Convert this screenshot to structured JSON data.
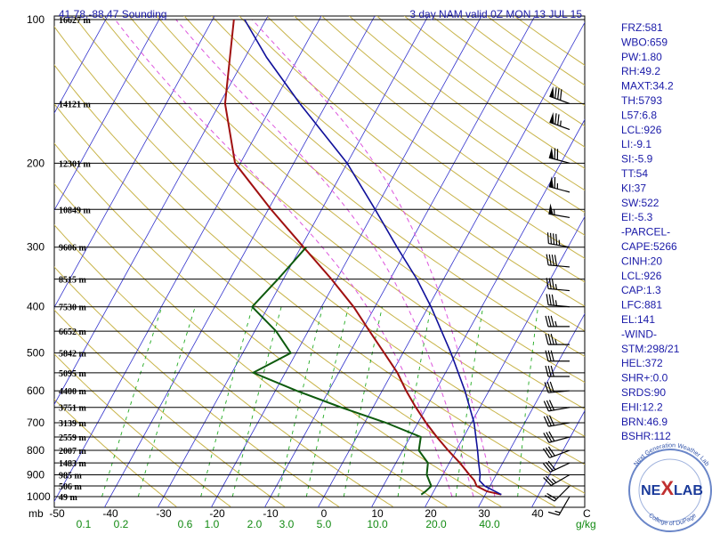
{
  "header": {
    "location": "41.78,-88.47 Sounding",
    "model": "3 day NAM valid 0Z MON 13 JUL 15"
  },
  "chart_data": {
    "type": "skew-t",
    "x_axis": {
      "ticks": [
        -50,
        -40,
        -30,
        -20,
        -10,
        0,
        10,
        20,
        30,
        40
      ],
      "unit": "C",
      "range": [
        -50,
        50
      ]
    },
    "y_axis": {
      "label": "mb",
      "scale": "log",
      "range": [
        1000,
        100
      ],
      "ticks": [
        100,
        200,
        300,
        400,
        500,
        600,
        700,
        800,
        900,
        1000
      ]
    },
    "mixing_ratio_axis": {
      "unit": "g/kg",
      "ticks": [
        {
          "label": "0.1",
          "temp": -45
        },
        {
          "label": "0.2",
          "temp": -38
        },
        {
          "label": "0.6",
          "temp": -26
        },
        {
          "label": "1.0",
          "temp": -21
        },
        {
          "label": "2.0",
          "temp": -13
        },
        {
          "label": "3.0",
          "temp": -7
        },
        {
          "label": "5.0",
          "temp": 0
        },
        {
          "label": "10.0",
          "temp": 10
        },
        {
          "label": "20.0",
          "temp": 21
        },
        {
          "label": "40.0",
          "temp": 31
        }
      ]
    },
    "height_labels": [
      {
        "p": 100,
        "h": "16627 m"
      },
      {
        "p": 150,
        "h": "14121 m"
      },
      {
        "p": 200,
        "h": "12301 m"
      },
      {
        "p": 250,
        "h": "10849 m"
      },
      {
        "p": 300,
        "h": "9606 m"
      },
      {
        "p": 350,
        "h": "8515 m"
      },
      {
        "p": 400,
        "h": "7530 m"
      },
      {
        "p": 450,
        "h": "6652 m"
      },
      {
        "p": 500,
        "h": "5842 m"
      },
      {
        "p": 550,
        "h": "5095 m"
      },
      {
        "p": 600,
        "h": "4400 m"
      },
      {
        "p": 650,
        "h": "3751 m"
      },
      {
        "p": 700,
        "h": "3139 m"
      },
      {
        "p": 750,
        "h": "2559 m"
      },
      {
        "p": 800,
        "h": "2007 m"
      },
      {
        "p": 850,
        "h": "1483 m"
      },
      {
        "p": 900,
        "h": "985 m"
      },
      {
        "p": 950,
        "h": "506 m"
      },
      {
        "p": 1000,
        "h": "49 m"
      }
    ],
    "series": [
      {
        "kind": "temperature",
        "points": [
          {
            "p": 990,
            "t": 33
          },
          {
            "p": 975,
            "t": 30
          },
          {
            "p": 950,
            "t": 27.5
          },
          {
            "p": 925,
            "t": 26.5
          },
          {
            "p": 900,
            "t": 25
          },
          {
            "p": 850,
            "t": 22
          },
          {
            "p": 800,
            "t": 18.5
          },
          {
            "p": 750,
            "t": 15
          },
          {
            "p": 700,
            "t": 11.5
          },
          {
            "p": 650,
            "t": 8
          },
          {
            "p": 600,
            "t": 4.5
          },
          {
            "p": 550,
            "t": 1
          },
          {
            "p": 500,
            "t": -3.5
          },
          {
            "p": 450,
            "t": -8.5
          },
          {
            "p": 400,
            "t": -14
          },
          {
            "p": 350,
            "t": -21
          },
          {
            "p": 300,
            "t": -29.5
          },
          {
            "p": 250,
            "t": -39.5
          },
          {
            "p": 200,
            "t": -51
          },
          {
            "p": 150,
            "t": -59
          },
          {
            "p": 100,
            "t": -66
          }
        ]
      },
      {
        "kind": "dewpoint",
        "points": [
          {
            "p": 990,
            "t": 18
          },
          {
            "p": 975,
            "t": 18.5
          },
          {
            "p": 950,
            "t": 19
          },
          {
            "p": 900,
            "t": 17
          },
          {
            "p": 850,
            "t": 16
          },
          {
            "p": 800,
            "t": 13
          },
          {
            "p": 750,
            "t": 12
          },
          {
            "p": 700,
            "t": 4
          },
          {
            "p": 650,
            "t": -6
          },
          {
            "p": 600,
            "t": -16
          },
          {
            "p": 550,
            "t": -26
          },
          {
            "p": 500,
            "t": -21
          },
          {
            "p": 450,
            "t": -26
          },
          {
            "p": 400,
            "t": -33
          },
          {
            "p": 350,
            "t": -31
          },
          {
            "p": 300,
            "t": -29
          }
        ]
      },
      {
        "kind": "parcel",
        "points": [
          {
            "p": 990,
            "t": 33
          },
          {
            "p": 950,
            "t": 29
          },
          {
            "p": 926,
            "t": 27.5
          },
          {
            "p": 900,
            "t": 27
          },
          {
            "p": 850,
            "t": 25.5
          },
          {
            "p": 800,
            "t": 24
          },
          {
            "p": 700,
            "t": 20.5
          },
          {
            "p": 600,
            "t": 15.5
          },
          {
            "p": 500,
            "t": 9
          },
          {
            "p": 400,
            "t": 0.5
          },
          {
            "p": 350,
            "t": -5
          },
          {
            "p": 300,
            "t": -12
          },
          {
            "p": 250,
            "t": -20
          },
          {
            "p": 200,
            "t": -30
          },
          {
            "p": 150,
            "t": -45
          },
          {
            "p": 120,
            "t": -56
          },
          {
            "p": 100,
            "t": -64
          }
        ]
      }
    ],
    "wind_barbs": [
      {
        "p": 150,
        "dir": 290,
        "spd": 80
      },
      {
        "p": 170,
        "dir": 290,
        "spd": 75
      },
      {
        "p": 200,
        "dir": 285,
        "spd": 70
      },
      {
        "p": 230,
        "dir": 285,
        "spd": 65
      },
      {
        "p": 260,
        "dir": 280,
        "spd": 55
      },
      {
        "p": 300,
        "dir": 280,
        "spd": 45
      },
      {
        "p": 330,
        "dir": 275,
        "spd": 40
      },
      {
        "p": 370,
        "dir": 275,
        "spd": 35
      },
      {
        "p": 400,
        "dir": 275,
        "spd": 35
      },
      {
        "p": 440,
        "dir": 270,
        "spd": 35
      },
      {
        "p": 480,
        "dir": 270,
        "spd": 35
      },
      {
        "p": 520,
        "dir": 270,
        "spd": 30
      },
      {
        "p": 560,
        "dir": 270,
        "spd": 30
      },
      {
        "p": 600,
        "dir": 265,
        "spd": 30
      },
      {
        "p": 650,
        "dir": 260,
        "spd": 30
      },
      {
        "p": 700,
        "dir": 260,
        "spd": 30
      },
      {
        "p": 750,
        "dir": 255,
        "spd": 30
      },
      {
        "p": 800,
        "dir": 250,
        "spd": 30
      },
      {
        "p": 850,
        "dir": 245,
        "spd": 30
      },
      {
        "p": 900,
        "dir": 240,
        "spd": 25
      },
      {
        "p": 950,
        "dir": 225,
        "spd": 20
      },
      {
        "p": 1000,
        "dir": 210,
        "spd": 15
      }
    ]
  },
  "indices": [
    "FRZ:581",
    "WBO:659",
    "PW:1.80",
    "RH:49.2",
    "MAXT:34.2",
    "TH:5793",
    "L57:6.8",
    "LCL:926",
    "LI:-9.1",
    "SI:-5.9",
    "TT:54",
    "KI:37",
    "SW:522",
    "EI:-5.3",
    "-PARCEL-",
    "CAPE:5266",
    "CINH:20",
    "LCL:926",
    "CAP:1.3",
    "LFC:881",
    "EL:141",
    "-WIND-",
    "STM:298/21",
    "HEL:372",
    "SHR+:0.0",
    "SRDS:90",
    "EHI:12.2",
    "BRN:46.9",
    "BSHR:112"
  ],
  "logo": {
    "main_a": "NE",
    "main_b": "X",
    "main_c": "LAB",
    "ring_top": "Next Generation Weather Lab",
    "ring_bottom": "College of DuPage"
  },
  "colors": {
    "temperature": "#a01010",
    "dewpoint": "#0d5a0d",
    "parcel": "#10109a",
    "isotherm": "#3333cc",
    "dry_adiabat": "#c8b44a",
    "moist_adiabat": "#dd55dd",
    "mixing_ratio": "#22aa22",
    "isobar": "#000000",
    "title": "#1a1aa8"
  }
}
